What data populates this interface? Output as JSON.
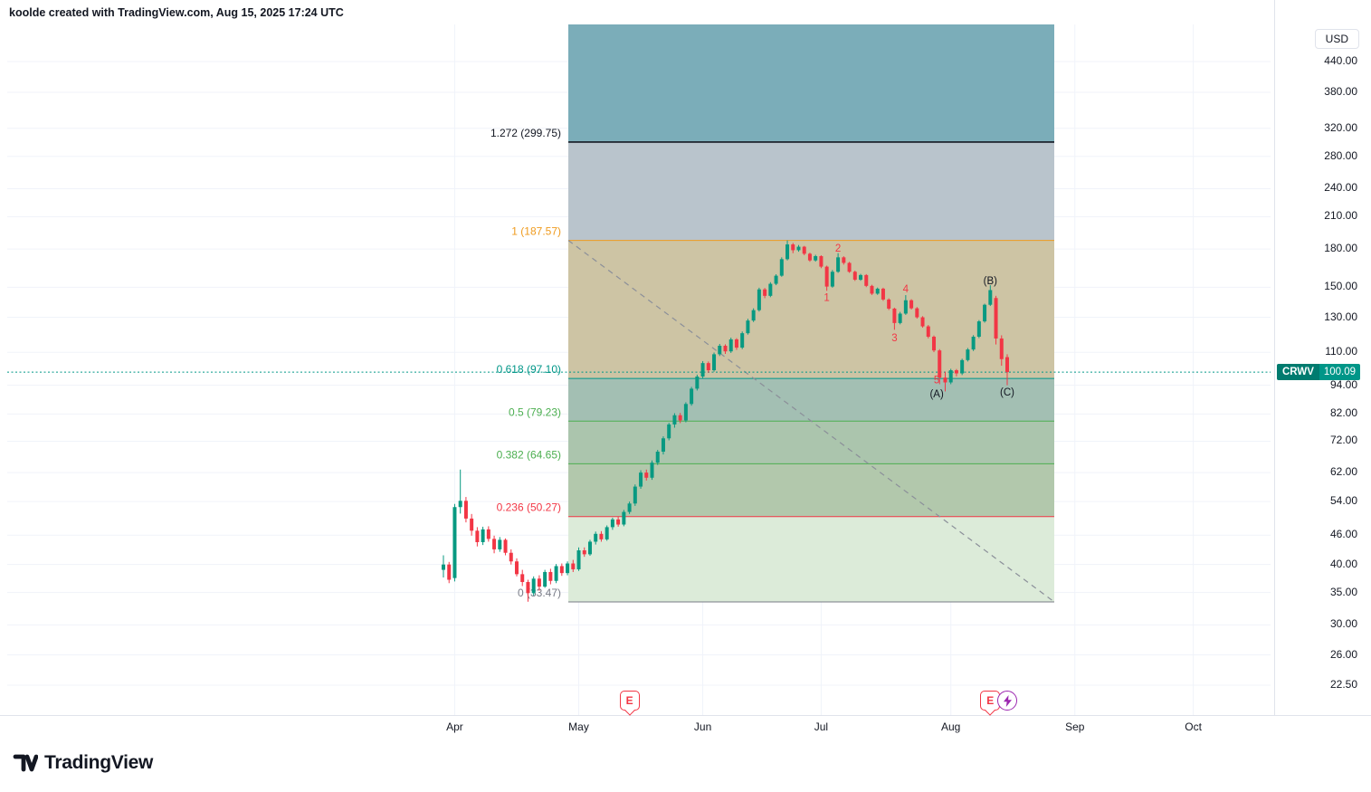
{
  "attribution": "koolde created with TradingView.com, Aug 15, 2025 17:24 UTC",
  "logo_text": "TradingView",
  "symbol": {
    "ticker": "CRWV",
    "last_price": "100.09"
  },
  "price_axis": {
    "currency_label": "USD",
    "ticks": [
      {
        "label": "440.00",
        "value": 440
      },
      {
        "label": "380.00",
        "value": 380
      },
      {
        "label": "320.00",
        "value": 320
      },
      {
        "label": "280.00",
        "value": 280
      },
      {
        "label": "240.00",
        "value": 240
      },
      {
        "label": "210.00",
        "value": 210
      },
      {
        "label": "180.00",
        "value": 180
      },
      {
        "label": "150.00",
        "value": 150
      },
      {
        "label": "130.00",
        "value": 130
      },
      {
        "label": "110.00",
        "value": 110
      },
      {
        "label": "94.00",
        "value": 94
      },
      {
        "label": "82.00",
        "value": 82
      },
      {
        "label": "72.00",
        "value": 72
      },
      {
        "label": "62.00",
        "value": 62
      },
      {
        "label": "54.00",
        "value": 54
      },
      {
        "label": "46.00",
        "value": 46
      },
      {
        "label": "40.00",
        "value": 40
      },
      {
        "label": "35.00",
        "value": 35
      },
      {
        "label": "30.00",
        "value": 30
      },
      {
        "label": "26.00",
        "value": 26
      },
      {
        "label": "22.50",
        "value": 22.5
      }
    ]
  },
  "time_axis": {
    "months": [
      {
        "label": "Apr",
        "day_index": 2
      },
      {
        "label": "May",
        "day_index": 24
      },
      {
        "label": "Jun",
        "day_index": 46
      },
      {
        "label": "Jul",
        "day_index": 67
      },
      {
        "label": "Aug",
        "day_index": 90
      },
      {
        "label": "Sep",
        "day_index": 112
      },
      {
        "label": "Oct",
        "day_index": 133
      }
    ]
  },
  "events": [
    {
      "type": "earnings",
      "label": "E",
      "day_index": 33,
      "color": "#f23645"
    },
    {
      "type": "earnings",
      "label": "E",
      "day_index": 97,
      "color": "#f23645"
    },
    {
      "type": "flash",
      "label": "bolt",
      "day_index": 100,
      "color": "#9c27b0"
    }
  ],
  "chart_data": {
    "type": "candlestick",
    "scale": "logarithmic",
    "grid": true,
    "colors": {
      "up": "#089981",
      "down": "#f23645",
      "grid": "#f0f3fa",
      "trendline": "#8b8f99"
    },
    "price_line": {
      "price": 100.09,
      "color": "#009688",
      "style": "dotted"
    },
    "fib_retracement": {
      "levels": [
        {
          "ratio": "1.272",
          "price": 299.75,
          "label": "1.272 (299.75)",
          "color": "#131722"
        },
        {
          "ratio": "1",
          "price": 187.57,
          "label": "1 (187.57)",
          "color": "#ef9b1e"
        },
        {
          "ratio": "0.618",
          "price": 97.1,
          "label": "0.618 (97.10)",
          "color": "#009688"
        },
        {
          "ratio": "0.5",
          "price": 79.23,
          "label": "0.5 (79.23)",
          "color": "#4caf50"
        },
        {
          "ratio": "0.382",
          "price": 64.65,
          "label": "0.382 (64.65)",
          "color": "#4caf50"
        },
        {
          "ratio": "0.236",
          "price": 50.27,
          "label": "0.236 (50.27)",
          "color": "#f23645"
        },
        {
          "ratio": "0",
          "price": 33.47,
          "label": "0 (33.47)",
          "color": "#787b86"
        }
      ],
      "bands": [
        {
          "upper": null,
          "lower": 299.75,
          "color": "#7badb9"
        },
        {
          "upper": 299.75,
          "lower": 187.57,
          "color": "#b9c4cc"
        },
        {
          "upper": 187.57,
          "lower": 97.1,
          "color": "#cdc4a4"
        },
        {
          "upper": 97.1,
          "lower": 79.23,
          "color": "#a3bfb3"
        },
        {
          "upper": 79.23,
          "lower": 64.65,
          "color": "#abc5ad"
        },
        {
          "upper": 64.65,
          "lower": 50.27,
          "color": "#b2c8ac"
        },
        {
          "upper": 50.27,
          "lower": 33.47,
          "color": "#dcebd9"
        }
      ],
      "trendline": {
        "from_price": 187.57,
        "to_price": 33.47,
        "style": "dashed"
      }
    },
    "elliott_wave_labels": [
      {
        "text": "1",
        "day_index": 68,
        "price": 143,
        "color": "#f23645"
      },
      {
        "text": "2",
        "day_index": 70,
        "price": 181,
        "color": "#f23645"
      },
      {
        "text": "3",
        "day_index": 80,
        "price": 118,
        "color": "#f23645"
      },
      {
        "text": "4",
        "day_index": 82,
        "price": 149,
        "color": "#f23645"
      },
      {
        "text": "5",
        "day_index": 87.5,
        "price": 96.5,
        "color": "#f23645"
      },
      {
        "text": "(A)",
        "day_index": 87.5,
        "price": 90.3,
        "color": "#131722"
      },
      {
        "text": "(B)",
        "day_index": 97,
        "price": 155,
        "color": "#131722"
      },
      {
        "text": "(C)",
        "day_index": 100,
        "price": 91,
        "color": "#131722"
      }
    ],
    "candles": [
      [
        39.0,
        41.8,
        37.6,
        40.0
      ],
      [
        40.0,
        40.5,
        36.6,
        37.2
      ],
      [
        37.5,
        53.4,
        36.9,
        52.6
      ],
      [
        52.6,
        62.9,
        51.0,
        54.2
      ],
      [
        54.2,
        55.2,
        48.9,
        49.8
      ],
      [
        49.8,
        50.9,
        45.9,
        47.0
      ],
      [
        47.0,
        47.8,
        43.6,
        44.5
      ],
      [
        44.5,
        47.9,
        43.9,
        47.3
      ],
      [
        47.3,
        48.0,
        44.6,
        45.2
      ],
      [
        45.2,
        45.9,
        42.2,
        43.0
      ],
      [
        43.0,
        45.6,
        42.5,
        45.0
      ],
      [
        45.0,
        45.3,
        41.8,
        42.3
      ],
      [
        42.3,
        43.0,
        40.0,
        40.6
      ],
      [
        40.6,
        41.2,
        37.8,
        38.2
      ],
      [
        38.2,
        39.0,
        36.1,
        36.8
      ],
      [
        36.8,
        37.2,
        33.5,
        34.9
      ],
      [
        34.9,
        37.8,
        34.5,
        37.4
      ],
      [
        37.4,
        38.0,
        35.3,
        36.0
      ],
      [
        36.0,
        39.0,
        35.8,
        38.6
      ],
      [
        38.6,
        39.2,
        36.4,
        37.0
      ],
      [
        37.0,
        40.1,
        36.6,
        39.7
      ],
      [
        39.7,
        40.2,
        37.9,
        38.4
      ],
      [
        38.4,
        40.6,
        38.0,
        40.2
      ],
      [
        40.2,
        40.9,
        38.6,
        39.1
      ],
      [
        39.1,
        43.4,
        38.8,
        42.8
      ],
      [
        42.8,
        43.4,
        41.5,
        42.0
      ],
      [
        42.0,
        45.0,
        41.7,
        44.6
      ],
      [
        44.6,
        46.8,
        44.0,
        46.3
      ],
      [
        46.3,
        46.9,
        44.6,
        45.1
      ],
      [
        45.1,
        48.2,
        44.8,
        47.8
      ],
      [
        47.8,
        50.0,
        47.2,
        49.6
      ],
      [
        49.6,
        50.2,
        47.9,
        48.4
      ],
      [
        48.4,
        51.9,
        48.0,
        51.4
      ],
      [
        51.4,
        54.0,
        50.9,
        53.5
      ],
      [
        53.5,
        58.6,
        52.9,
        58.0
      ],
      [
        58.0,
        62.7,
        57.4,
        62.0
      ],
      [
        62.0,
        62.9,
        59.7,
        60.5
      ],
      [
        60.5,
        65.7,
        59.9,
        65.0
      ],
      [
        65.0,
        69.1,
        64.3,
        68.5
      ],
      [
        68.5,
        73.7,
        67.6,
        73.0
      ],
      [
        73.0,
        78.6,
        72.3,
        78.0
      ],
      [
        78.0,
        82.3,
        76.8,
        81.5
      ],
      [
        81.5,
        82.4,
        78.5,
        79.5
      ],
      [
        79.5,
        86.7,
        78.8,
        86.0
      ],
      [
        86.0,
        93.3,
        85.3,
        92.5
      ],
      [
        92.5,
        98.9,
        91.7,
        98.0
      ],
      [
        98.0,
        105.5,
        97.1,
        104.5
      ],
      [
        104.5,
        105.3,
        99.8,
        101.0
      ],
      [
        101.0,
        109.9,
        100.3,
        109.0
      ],
      [
        109.0,
        114.5,
        108.1,
        113.5
      ],
      [
        113.5,
        114.3,
        109.2,
        110.5
      ],
      [
        110.5,
        118.0,
        109.7,
        117.0
      ],
      [
        117.0,
        117.7,
        111.3,
        112.5
      ],
      [
        112.5,
        121.5,
        111.7,
        120.5
      ],
      [
        120.5,
        129.1,
        119.7,
        128.0
      ],
      [
        128.0,
        135.7,
        127.1,
        134.5
      ],
      [
        134.5,
        149.7,
        133.6,
        148.5
      ],
      [
        148.5,
        149.5,
        142.4,
        144.0
      ],
      [
        144.0,
        153.7,
        143.1,
        152.5
      ],
      [
        152.5,
        159.6,
        151.5,
        158.5
      ],
      [
        158.5,
        173.0,
        157.7,
        171.5
      ],
      [
        171.5,
        187.57,
        170.5,
        184.0
      ],
      [
        184.0,
        185.3,
        176.5,
        179.0
      ],
      [
        179.0,
        183.5,
        177.7,
        182.0
      ],
      [
        182.0,
        182.7,
        174.8,
        176.0
      ],
      [
        176.0,
        176.9,
        169.4,
        170.5
      ],
      [
        170.5,
        175.1,
        169.5,
        174.0
      ],
      [
        174.0,
        174.7,
        164.3,
        165.5
      ],
      [
        165.5,
        166.3,
        147.5,
        150.5
      ],
      [
        150.5,
        162.9,
        149.7,
        161.5
      ],
      [
        161.5,
        176.5,
        160.7,
        173.0
      ],
      [
        173.0,
        173.9,
        167.1,
        168.5
      ],
      [
        168.5,
        169.3,
        160.7,
        161.5
      ],
      [
        161.5,
        162.4,
        154.6,
        155.5
      ],
      [
        155.5,
        159.9,
        154.7,
        159.0
      ],
      [
        159.0,
        159.7,
        150.1,
        151.0
      ],
      [
        151.0,
        151.8,
        144.6,
        145.5
      ],
      [
        145.5,
        149.8,
        144.7,
        149.0
      ],
      [
        149.0,
        149.7,
        140.6,
        141.5
      ],
      [
        141.5,
        142.3,
        134.6,
        135.5
      ],
      [
        135.5,
        136.1,
        122.5,
        126.5
      ],
      [
        126.5,
        133.4,
        125.7,
        132.3
      ],
      [
        132.3,
        144.5,
        131.5,
        141.0
      ],
      [
        141.0,
        141.7,
        134.9,
        135.7
      ],
      [
        135.7,
        136.5,
        129.2,
        130.0
      ],
      [
        130.0,
        130.7,
        123.7,
        124.5
      ],
      [
        124.5,
        125.3,
        117.6,
        118.5
      ],
      [
        118.5,
        119.2,
        110.1,
        111.0
      ],
      [
        111.0,
        111.7,
        94.5,
        97.5
      ],
      [
        97.5,
        100.3,
        91.3,
        95.3
      ],
      [
        95.3,
        101.7,
        94.5,
        101.0
      ],
      [
        101.0,
        101.6,
        98.1,
        99.5
      ],
      [
        99.5,
        106.7,
        98.7,
        106.0
      ],
      [
        106.0,
        112.3,
        105.3,
        111.5
      ],
      [
        111.5,
        119.4,
        110.7,
        118.5
      ],
      [
        118.5,
        128.3,
        117.7,
        127.5
      ],
      [
        127.5,
        138.7,
        126.7,
        138.0
      ],
      [
        138.0,
        151.5,
        137.2,
        148.0
      ],
      [
        142.5,
        144.0,
        114.2,
        117.5
      ],
      [
        117.5,
        119.3,
        103.2,
        106.5
      ],
      [
        107.5,
        109.0,
        94.0,
        100.09
      ]
    ]
  }
}
